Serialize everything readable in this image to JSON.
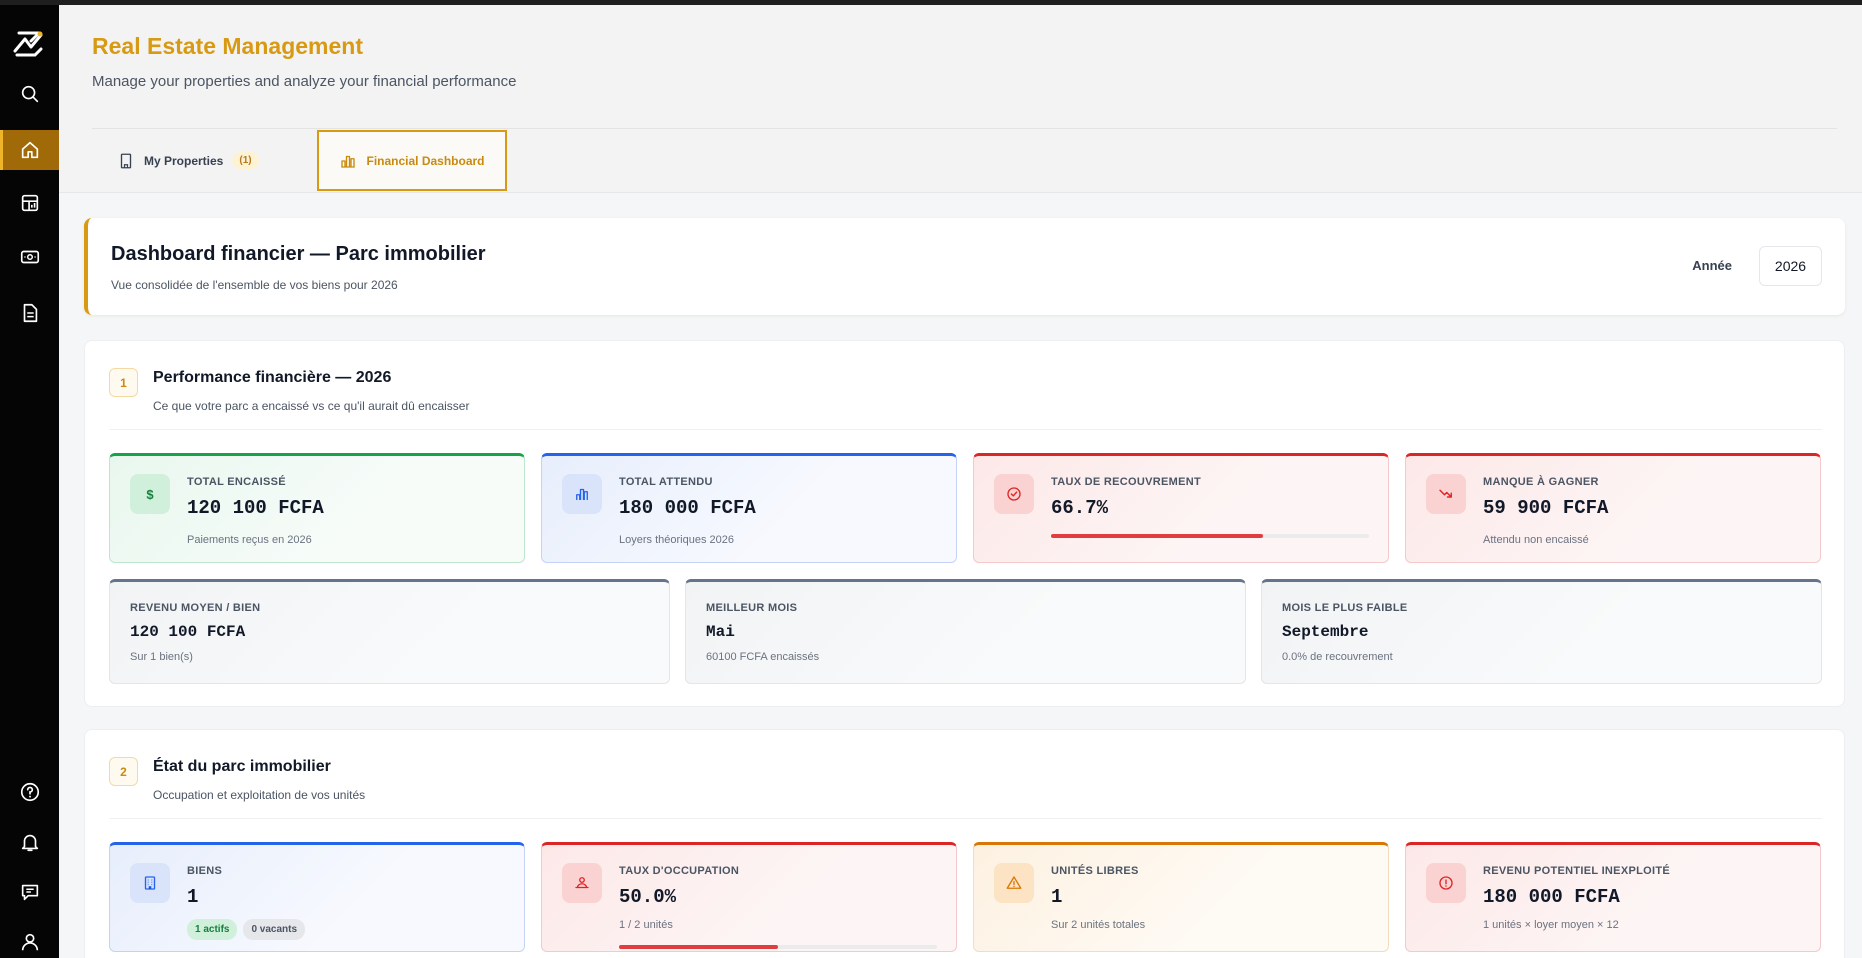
{
  "app": {
    "title": "Real Estate Management",
    "subtitle": "Manage your properties and analyze your financial performance"
  },
  "tabs": {
    "properties_label": "My Properties",
    "properties_count": "(1)",
    "financial_label": "Financial Dashboard"
  },
  "sidebar": {
    "icons": [
      "logo-icon",
      "search-icon",
      "home-icon",
      "dashboard-icon",
      "payments-icon",
      "document-icon",
      "help-icon",
      "bell-icon",
      "chat-icon",
      "user-icon"
    ],
    "active": "home-icon"
  },
  "hero": {
    "title": "Dashboard financier — Parc immobilier",
    "subtitle": "Vue consolidée de l'ensemble de vos biens pour 2026",
    "year_label": "Année",
    "year_value": "2026"
  },
  "section1": {
    "number": "1",
    "title": "Performance financière — 2026",
    "subtitle": "Ce que votre parc a encaissé vs ce qu'il aurait dû encaisser",
    "kpis": [
      {
        "label": "TOTAL ENCAISSÉ",
        "value": "120 100 FCFA",
        "note": "Paiements reçus en 2026",
        "icon": "$",
        "color": "#16a34a"
      },
      {
        "label": "TOTAL ATTENDU",
        "value": "180 000 FCFA",
        "note": "Loyers théoriques 2026",
        "icon": "bar-chart-icon",
        "color": "#2563eb"
      },
      {
        "label": "TAUX DE RECOUVREMENT",
        "value": "66.7%",
        "progress": 0.667,
        "icon": "check-circle-icon",
        "color": "#dc2626"
      },
      {
        "label": "MANQUE À GAGNER",
        "value": "59 900 FCFA",
        "note": "Attendu non encaissé",
        "icon": "trending-down-icon",
        "color": "#dc2626"
      }
    ],
    "stats": [
      {
        "label": "REVENU MOYEN / BIEN",
        "value": "120 100 FCFA",
        "note": "Sur 1 bien(s)"
      },
      {
        "label": "MEILLEUR MOIS",
        "value": "Mai",
        "note": "60100 FCFA encaissés"
      },
      {
        "label": "MOIS LE PLUS FAIBLE",
        "value": "Septembre",
        "note": "0.0% de recouvrement"
      }
    ]
  },
  "section2": {
    "number": "2",
    "title": "État du parc immobilier",
    "subtitle": "Occupation et exploitation de vos unités",
    "kpis": [
      {
        "label": "BIENS",
        "value": "1",
        "chips": [
          "1 actifs",
          "0 vacants"
        ],
        "icon": "building-icon",
        "color": "#2563eb"
      },
      {
        "label": "TAUX D'OCCUPATION",
        "value": "50.0%",
        "note": "1 / 2 unités",
        "progress": 0.5,
        "icon": "person-icon",
        "color": "#dc2626"
      },
      {
        "label": "UNITÉS LIBRES",
        "value": "1",
        "note": "Sur 2 unités totales",
        "icon": "warning-icon",
        "color": "#d97706"
      },
      {
        "label": "REVENU POTENTIEL INEXPLOITÉ",
        "value": "180 000 FCFA",
        "note": "1 unités × loyer moyen × 12",
        "icon": "alert-circle-icon",
        "color": "#dc2626"
      }
    ]
  }
}
